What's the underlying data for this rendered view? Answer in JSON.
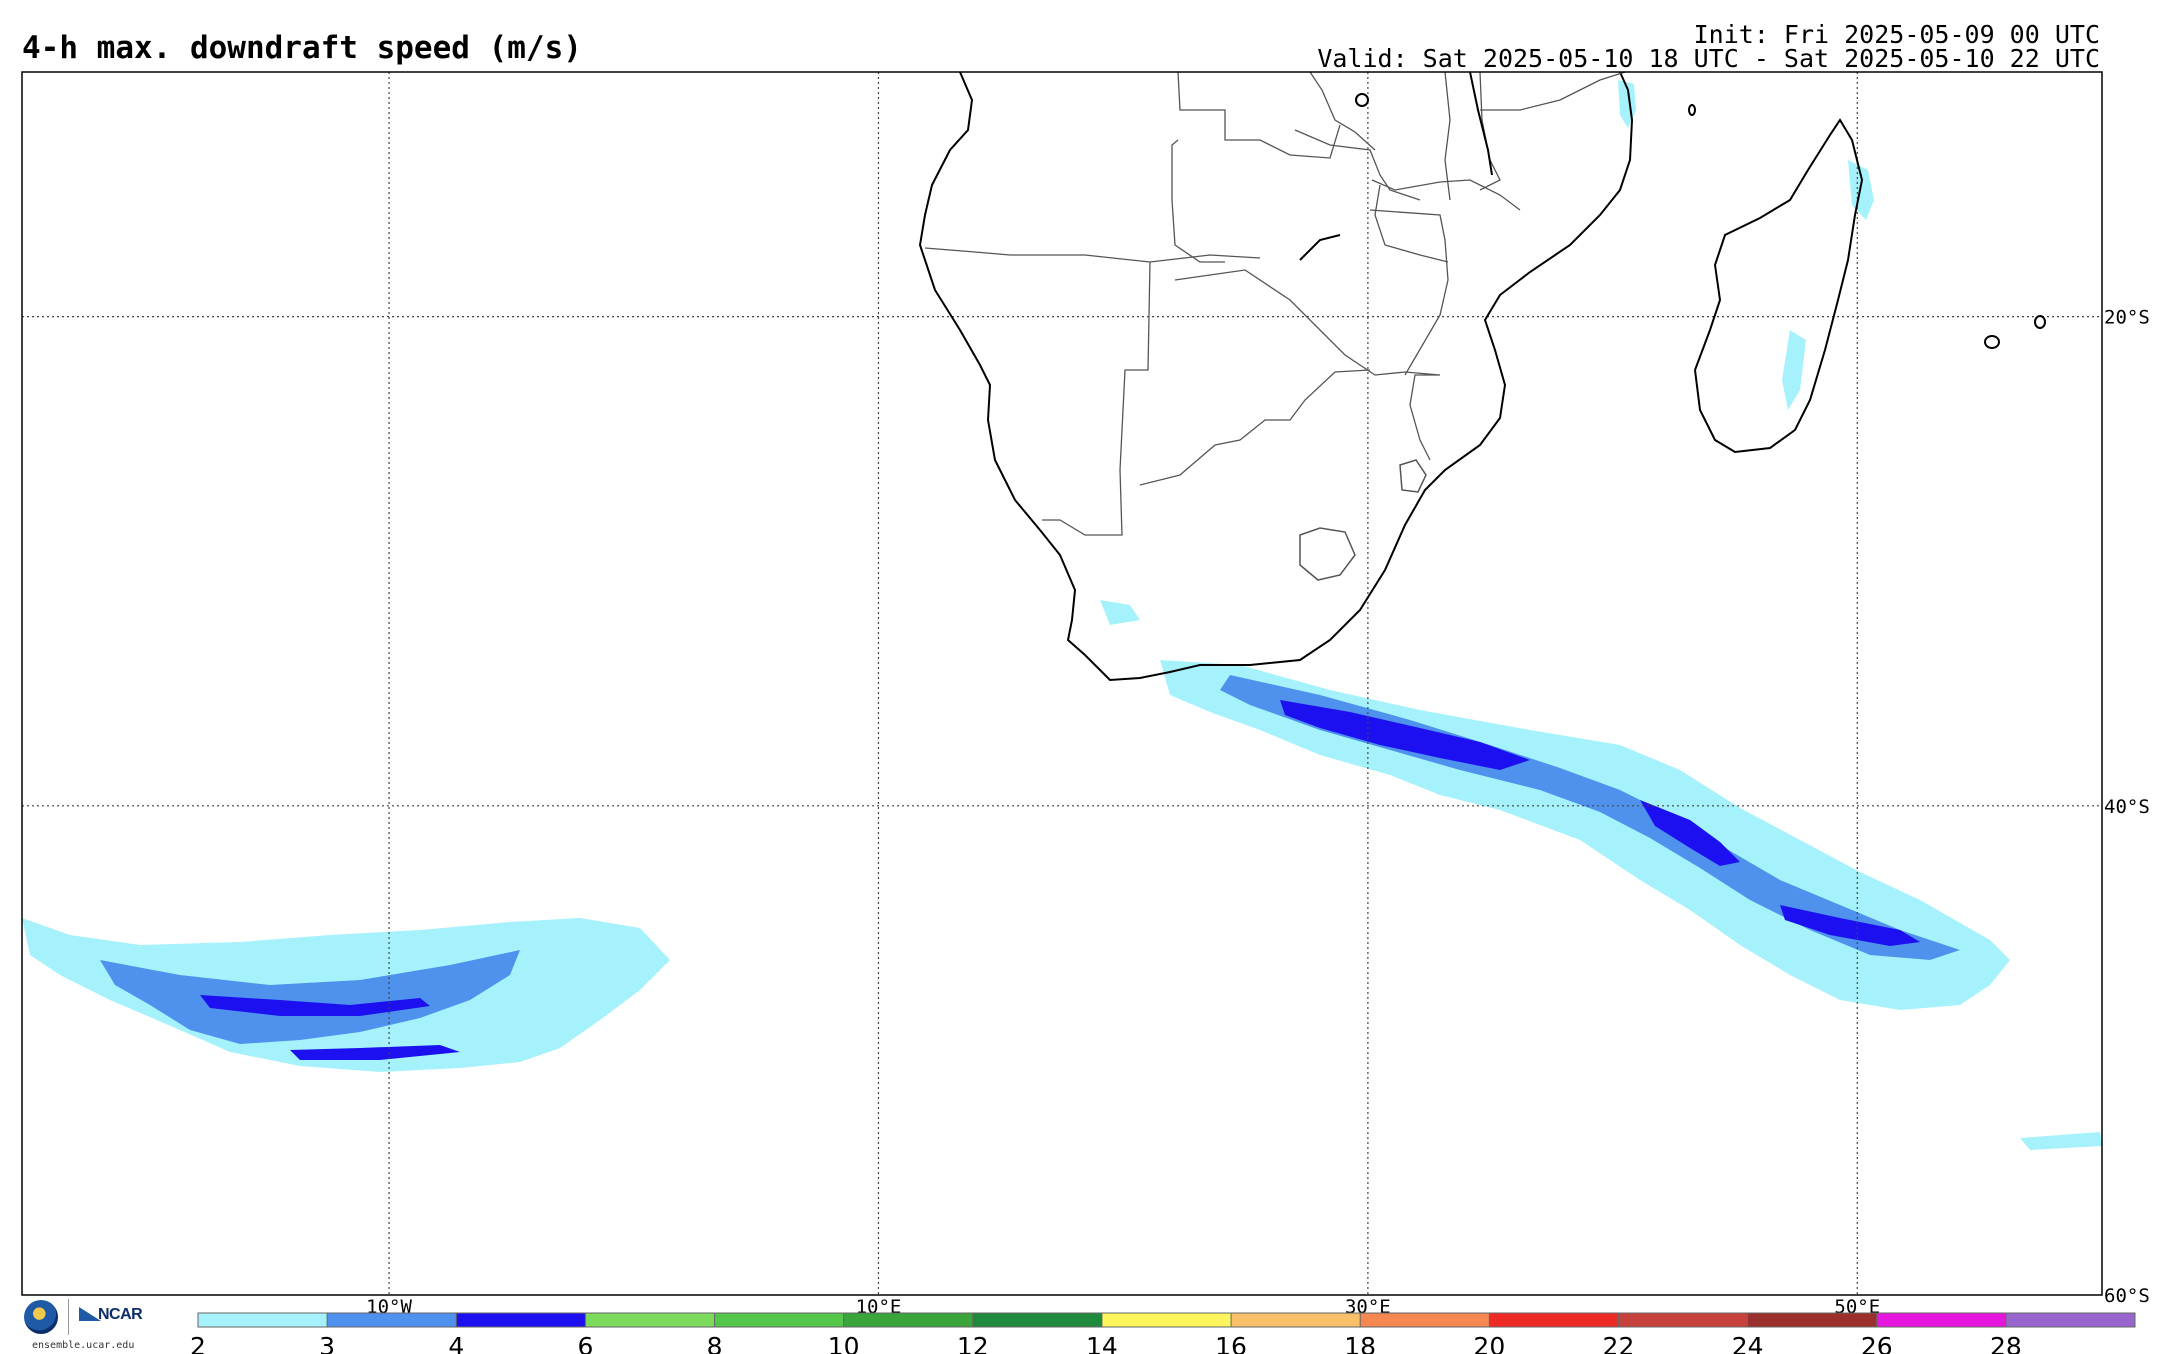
{
  "header": {
    "title": "4-h max. downdraft speed (m/s)",
    "init": "Init: Fri 2025-05-09 00 UTC",
    "valid": "Valid: Sat 2025-05-10 18 UTC - Sat 2025-05-10 22 UTC"
  },
  "map": {
    "projection": "cylindrical",
    "lon_range": [
      -25,
      60
    ],
    "lat_range": [
      -60,
      -10
    ],
    "grid": true,
    "lon_labels": [
      "10°W",
      "10°E",
      "30°E",
      "50°E"
    ],
    "lat_labels": [
      "20°S",
      "40°S",
      "60°S"
    ],
    "colors": {
      "coast": "#000000",
      "border": "#555555",
      "grid": "#444444"
    }
  },
  "colorbar": {
    "ticks": [
      "2",
      "3",
      "4",
      "6",
      "8",
      "10",
      "12",
      "14",
      "16",
      "18",
      "20",
      "22",
      "24",
      "26",
      "28"
    ],
    "colors": [
      "#a5f2fc",
      "#4f92ee",
      "#1d10f0",
      "#7ddb5c",
      "#54c649",
      "#3aa53a",
      "#1f8a3e",
      "#fdf55e",
      "#f8c06a",
      "#f78750",
      "#ef2a24",
      "#c7413d",
      "#9b2f2c",
      "#e616de",
      "#9865cf"
    ]
  },
  "footer": {
    "logo_text": "NCAR",
    "site": "ensemble.ucar.edu"
  }
}
